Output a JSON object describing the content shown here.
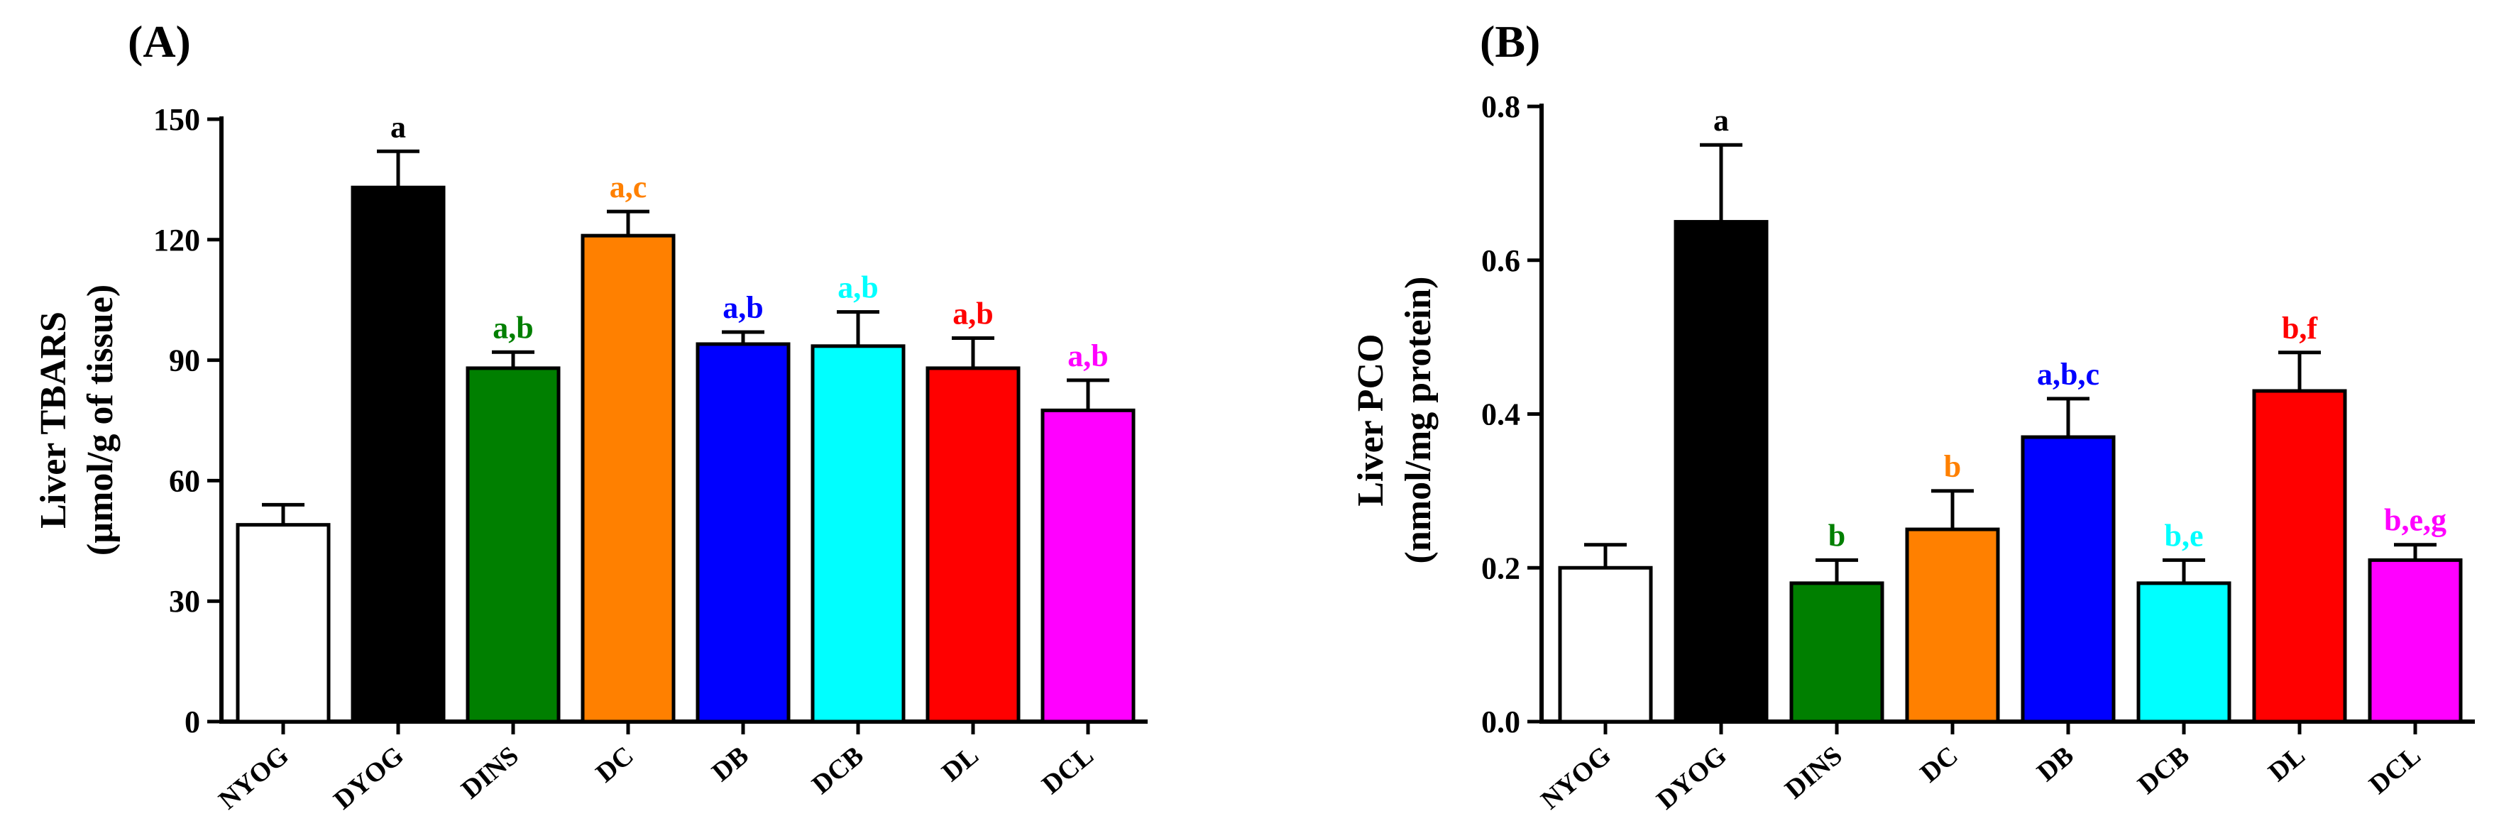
{
  "chart_data": [
    {
      "type": "bar",
      "panel": "(A)",
      "title": "",
      "xlabel": "",
      "ylabel": [
        "Liver TBARS",
        "(µmol/g of tissue)"
      ],
      "ylim": [
        0,
        150
      ],
      "yticks": [
        0,
        30,
        60,
        90,
        120,
        150
      ],
      "categories": [
        "NYOG",
        "DYOG",
        "DINS",
        "DC",
        "DB",
        "DCB",
        "DL",
        "DCL"
      ],
      "values": [
        49,
        133,
        88,
        121,
        94,
        93.5,
        88,
        77.5
      ],
      "errors": [
        5,
        9,
        4,
        6,
        3,
        8.5,
        7.5,
        7.5
      ],
      "colors": [
        "#ffffff",
        "#000000",
        "#007f00",
        "#ff8000",
        "#0000ff",
        "#00ffff",
        "#ff0000",
        "#ff00ff"
      ],
      "annotations": [
        "",
        "a",
        "a,b",
        "a,c",
        "a,b",
        "a,b",
        "a,b",
        "a,b"
      ],
      "annotation_colors": [
        "#000000",
        "#000000",
        "#007f00",
        "#ff8000",
        "#0000ff",
        "#00ffff",
        "#ff0000",
        "#ff00ff"
      ]
    },
    {
      "type": "bar",
      "panel": "(B)",
      "title": "",
      "xlabel": "",
      "ylabel": [
        "Liver PCO",
        "(nmol/mg protein)"
      ],
      "ylim": [
        0,
        0.8
      ],
      "yticks": [
        "0.0",
        "0.2",
        "0.4",
        "0.6",
        "0.8"
      ],
      "categories": [
        "NYOG",
        "DYOG",
        "DINS",
        "DC",
        "DB",
        "DCB",
        "DL",
        "DCL"
      ],
      "values": [
        0.2,
        0.65,
        0.18,
        0.25,
        0.37,
        0.18,
        0.43,
        0.21
      ],
      "errors": [
        0.03,
        0.1,
        0.03,
        0.05,
        0.05,
        0.03,
        0.05,
        0.02
      ],
      "colors": [
        "#ffffff",
        "#000000",
        "#007f00",
        "#ff8000",
        "#0000ff",
        "#00ffff",
        "#ff0000",
        "#ff00ff"
      ],
      "annotations": [
        "",
        "a",
        "b",
        "b",
        "a,b,c",
        "b,e",
        "b,f",
        "b,e,g"
      ],
      "annotation_colors": [
        "#000000",
        "#000000",
        "#007f00",
        "#ff8000",
        "#0000ff",
        "#00ffff",
        "#ff0000",
        "#ff00ff"
      ]
    }
  ]
}
